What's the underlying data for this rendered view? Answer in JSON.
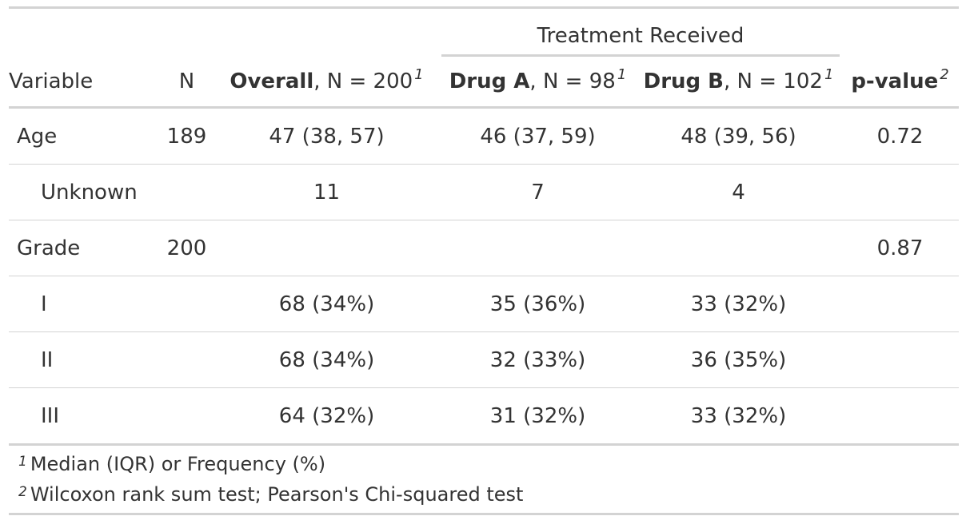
{
  "table": {
    "spanner": "Treatment Received",
    "columns": {
      "variable": "Variable",
      "n": "N",
      "overall_name": "Overall",
      "overall_n": ", N = 200",
      "overall_sup": "1",
      "drug_a_name": "Drug A",
      "drug_a_n": ", N = 98",
      "drug_a_sup": "1",
      "drug_b_name": "Drug B",
      "drug_b_n": ", N = 102",
      "drug_b_sup": "1",
      "p_value": "p-value",
      "p_value_sup": "2"
    },
    "rows": [
      {
        "variable": "Age",
        "n": "189",
        "overall": "47 (38, 57)",
        "drug_a": "46 (37, 59)",
        "drug_b": "48 (39, 56)",
        "p_value": "0.72"
      },
      {
        "variable": "Unknown",
        "n": "",
        "overall": "11",
        "drug_a": "7",
        "drug_b": "4",
        "p_value": ""
      },
      {
        "variable": "Grade",
        "n": "200",
        "overall": "",
        "drug_a": "",
        "drug_b": "",
        "p_value": "0.87"
      },
      {
        "variable": "I",
        "n": "",
        "overall": "68 (34%)",
        "drug_a": "35 (36%)",
        "drug_b": "33 (32%)",
        "p_value": ""
      },
      {
        "variable": "II",
        "n": "",
        "overall": "68 (34%)",
        "drug_a": "32 (33%)",
        "drug_b": "36 (35%)",
        "p_value": ""
      },
      {
        "variable": "III",
        "n": "",
        "overall": "64 (32%)",
        "drug_a": "31 (32%)",
        "drug_b": "33 (32%)",
        "p_value": ""
      }
    ],
    "footnotes": [
      {
        "mark": "1",
        "text": "Median (IQR) or Frequency (%)"
      },
      {
        "mark": "2",
        "text": "Wilcoxon rank sum test; Pearson's Chi-squared test"
      }
    ]
  }
}
